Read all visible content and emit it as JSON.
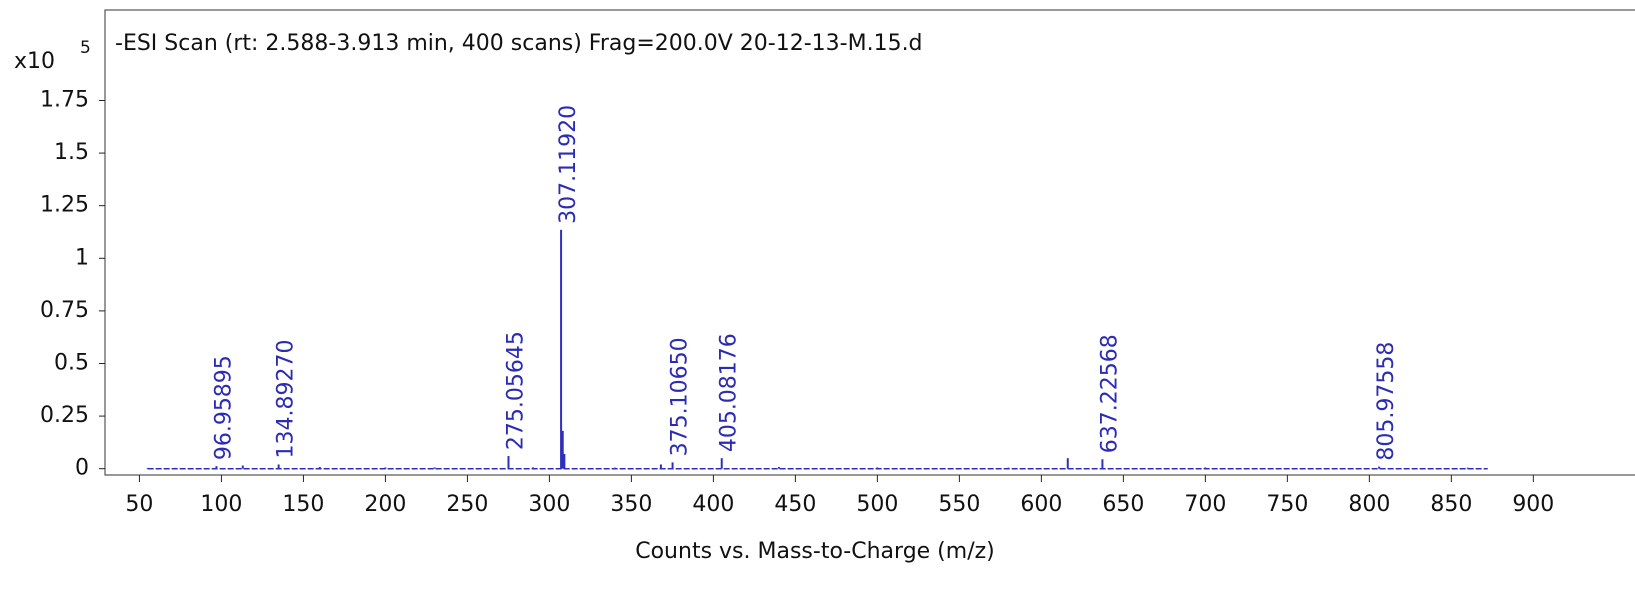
{
  "chart_data": {
    "type": "spectrum",
    "title": "-ESI Scan (rt: 2.588-3.913 min, 400 scans) Frag=200.0V 20-12-13-M.15.d",
    "x_label": "Counts vs. Mass-to-Charge (m/z)",
    "y_multiplier": "x10",
    "y_exponent": "5",
    "color": "#2f2fbf",
    "label_color": "#2b2bb5",
    "x": [
      55,
      72,
      96.95895,
      113,
      134.8927,
      160,
      200,
      230,
      275.05645,
      290,
      307.1192,
      308.12,
      309.12,
      340,
      368,
      375.1065,
      405.08176,
      440,
      500,
      580,
      616.1,
      637.22568,
      700,
      805.97558,
      860
    ],
    "values": [
      0.004,
      0.004,
      0.012,
      0.015,
      0.02,
      0.008,
      0.006,
      0.006,
      0.06,
      0.006,
      1.135,
      0.18,
      0.07,
      0.005,
      0.02,
      0.03,
      0.05,
      0.008,
      0.006,
      0.005,
      0.05,
      0.045,
      0.006,
      0.01,
      0.005
    ],
    "peak_labels": [
      null,
      null,
      "96.95895",
      null,
      "134.89270",
      null,
      null,
      null,
      "275.05645",
      null,
      "307.11920",
      null,
      null,
      null,
      null,
      "375.10650",
      "405.08176",
      null,
      null,
      null,
      null,
      "637.22568",
      null,
      "805.97558",
      null
    ],
    "xlim": [
      29,
      962
    ],
    "ylim": [
      -0.03,
      2.18
    ],
    "xticks": [
      50,
      100,
      150,
      200,
      250,
      300,
      350,
      400,
      450,
      500,
      550,
      600,
      650,
      700,
      750,
      800,
      850,
      900
    ],
    "yticks": [
      0,
      0.25,
      0.5,
      0.75,
      1,
      1.25,
      1.5,
      1.75
    ]
  }
}
